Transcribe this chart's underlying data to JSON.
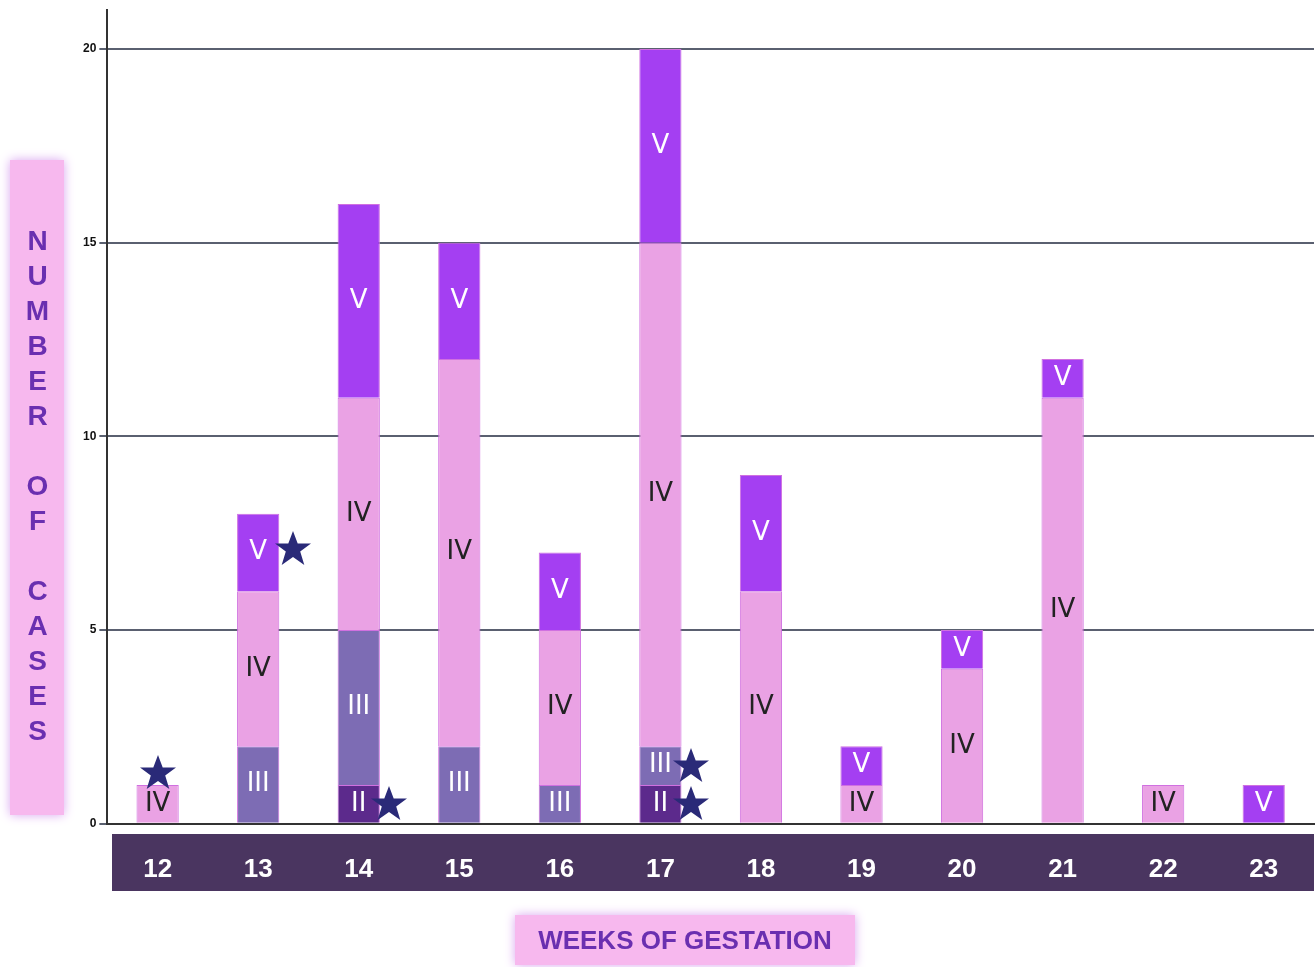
{
  "chart_data": {
    "type": "bar",
    "stacked": true,
    "xlabel": "WEEKS OF GESTATION",
    "ylabel": "NUMBER OF CASES",
    "categories": [
      "12",
      "13",
      "14",
      "15",
      "16",
      "17",
      "18",
      "19",
      "20",
      "21",
      "22",
      "23"
    ],
    "series": [
      {
        "name": "II",
        "color": "#5c2a8c",
        "values": [
          0,
          0,
          1,
          0,
          0,
          1,
          0,
          0,
          0,
          0,
          0,
          0
        ]
      },
      {
        "name": "III",
        "color": "#7d6cb4",
        "values": [
          0,
          2,
          4,
          2,
          1,
          1,
          0,
          0,
          0,
          0,
          0,
          0
        ]
      },
      {
        "name": "IV",
        "color": "#eaa2e4",
        "values": [
          1,
          4,
          6,
          10,
          4,
          13,
          6,
          1,
          4,
          11,
          1,
          0
        ]
      },
      {
        "name": "V",
        "color": "#a43ff2",
        "values": [
          0,
          2,
          5,
          3,
          2,
          5,
          3,
          1,
          1,
          1,
          0,
          1
        ]
      }
    ],
    "ylim": [
      0,
      21
    ],
    "yticks": [
      0,
      5,
      10,
      15,
      20
    ],
    "grid": "y",
    "legend": false
  }
}
